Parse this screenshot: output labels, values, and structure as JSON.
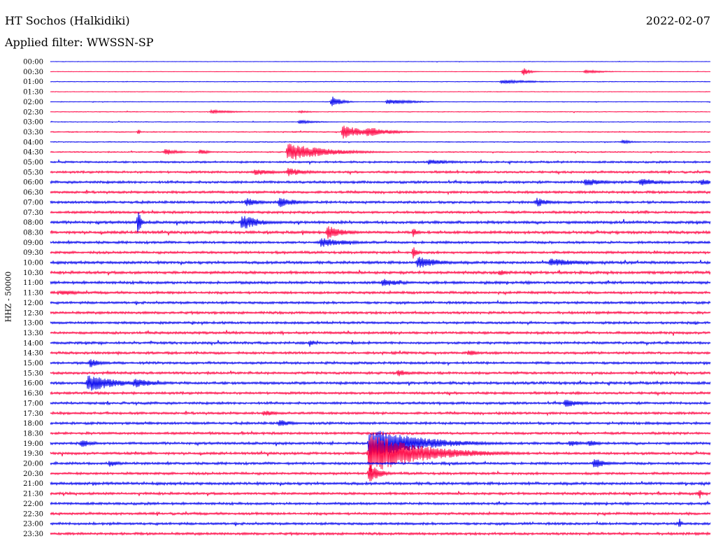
{
  "header": {
    "station": "HT Sochos (Halkidiki)",
    "date": "2022-02-07",
    "filter": "Applied filter: WWSSN-SP"
  },
  "colors": {
    "trace_a": "#0000ee",
    "trace_b": "#ff0040"
  },
  "chart_data": {
    "type": "line",
    "title": "HT Sochos (Halkidiki)",
    "ylabel": "HHZ - 50000",
    "row_interval_minutes": 30,
    "rows": [
      "00:00",
      "00:30",
      "01:00",
      "01:30",
      "02:00",
      "02:30",
      "03:00",
      "03:30",
      "04:00",
      "04:30",
      "05:00",
      "05:30",
      "06:00",
      "06:30",
      "07:00",
      "07:30",
      "08:00",
      "08:30",
      "09:00",
      "09:30",
      "10:00",
      "10:30",
      "11:00",
      "11:30",
      "12:00",
      "12:30",
      "13:00",
      "13:30",
      "14:00",
      "14:30",
      "15:00",
      "15:30",
      "16:00",
      "16:30",
      "17:00",
      "17:30",
      "18:00",
      "18:30",
      "19:00",
      "19:30",
      "20:00",
      "20:30",
      "21:00",
      "21:30",
      "22:00",
      "22:30",
      "23:00",
      "23:30"
    ],
    "row_colors": [
      "blue",
      "red"
    ],
    "noise_level": [
      0.4,
      0.4,
      0.6,
      0.5,
      0.6,
      0.6,
      0.6,
      0.9,
      0.8,
      1.0,
      1.6,
      1.8,
      2.0,
      2.0,
      2.0,
      2.0,
      2.2,
      2.2,
      2.0,
      2.0,
      2.2,
      2.2,
      2.2,
      2.0,
      2.0,
      2.0,
      2.0,
      2.0,
      2.0,
      2.0,
      2.0,
      2.0,
      2.2,
      2.0,
      2.0,
      2.0,
      2.0,
      2.0,
      2.0,
      2.0,
      2.0,
      2.0,
      2.2,
      2.0,
      2.0,
      2.0,
      2.0,
      2.0
    ],
    "events": [
      {
        "row": 1,
        "minute": 21.5,
        "amp": 6,
        "dur": 0.3
      },
      {
        "row": 1,
        "minute": 24.3,
        "amp": 3,
        "dur": 0.8
      },
      {
        "row": 2,
        "minute": 20.5,
        "amp": 3,
        "dur": 1.5
      },
      {
        "row": 4,
        "minute": 12.8,
        "amp": 9,
        "dur": 0.4
      },
      {
        "row": 4,
        "minute": 15.3,
        "amp": 4,
        "dur": 1.2
      },
      {
        "row": 5,
        "minute": 7.3,
        "amp": 3,
        "dur": 1.0
      },
      {
        "row": 5,
        "minute": 11.3,
        "amp": 2,
        "dur": 0.6
      },
      {
        "row": 6,
        "minute": 11.3,
        "amp": 3,
        "dur": 0.8
      },
      {
        "row": 7,
        "minute": 13.3,
        "amp": 10,
        "dur": 1.0
      },
      {
        "row": 7,
        "minute": 14.4,
        "amp": 8,
        "dur": 1.0
      },
      {
        "row": 7,
        "minute": 4.0,
        "amp": 4,
        "dur": 0.1
      },
      {
        "row": 8,
        "minute": 26.0,
        "amp": 3,
        "dur": 0.5
      },
      {
        "row": 9,
        "minute": 5.2,
        "amp": 5,
        "dur": 0.6
      },
      {
        "row": 9,
        "minute": 6.8,
        "amp": 4,
        "dur": 0.4
      },
      {
        "row": 9,
        "minute": 10.8,
        "amp": 14,
        "dur": 1.6
      },
      {
        "row": 10,
        "minute": 17.2,
        "amp": 4,
        "dur": 1.2
      },
      {
        "row": 11,
        "minute": 9.3,
        "amp": 5,
        "dur": 1.0
      },
      {
        "row": 11,
        "minute": 10.8,
        "amp": 6,
        "dur": 1.0
      },
      {
        "row": 12,
        "minute": 24.3,
        "amp": 6,
        "dur": 1.0
      },
      {
        "row": 12,
        "minute": 26.8,
        "amp": 6,
        "dur": 1.0
      },
      {
        "row": 12,
        "minute": 29.6,
        "amp": 5,
        "dur": 0.6
      },
      {
        "row": 14,
        "minute": 8.9,
        "amp": 7,
        "dur": 0.6
      },
      {
        "row": 14,
        "minute": 10.4,
        "amp": 8,
        "dur": 0.8
      },
      {
        "row": 14,
        "minute": 22.1,
        "amp": 7,
        "dur": 0.6
      },
      {
        "row": 16,
        "minute": 8.7,
        "amp": 12,
        "dur": 0.8
      },
      {
        "row": 16,
        "minute": 4.0,
        "amp": 25,
        "dur": 0.1
      },
      {
        "row": 17,
        "minute": 12.6,
        "amp": 10,
        "dur": 0.8
      },
      {
        "row": 17,
        "minute": 16.5,
        "amp": 8,
        "dur": 0.2
      },
      {
        "row": 18,
        "minute": 12.3,
        "amp": 7,
        "dur": 1.2
      },
      {
        "row": 19,
        "minute": 16.5,
        "amp": 10,
        "dur": 0.2
      },
      {
        "row": 20,
        "minute": 16.7,
        "amp": 9,
        "dur": 1.0
      },
      {
        "row": 20,
        "minute": 22.7,
        "amp": 6,
        "dur": 1.6
      },
      {
        "row": 21,
        "minute": 20.4,
        "amp": 5,
        "dur": 0.4
      },
      {
        "row": 22,
        "minute": 15.1,
        "amp": 6,
        "dur": 1.0
      },
      {
        "row": 23,
        "minute": 0.5,
        "amp": 5,
        "dur": 0.8
      },
      {
        "row": 28,
        "minute": 11.8,
        "amp": 7,
        "dur": 0.2
      },
      {
        "row": 29,
        "minute": 19.0,
        "amp": 5,
        "dur": 0.5
      },
      {
        "row": 30,
        "minute": 1.8,
        "amp": 7,
        "dur": 0.5
      },
      {
        "row": 31,
        "minute": 15.8,
        "amp": 6,
        "dur": 0.5
      },
      {
        "row": 32,
        "minute": 1.7,
        "amp": 14,
        "dur": 1.2
      },
      {
        "row": 32,
        "minute": 3.8,
        "amp": 7,
        "dur": 1.0
      },
      {
        "row": 34,
        "minute": 23.4,
        "amp": 6,
        "dur": 0.8
      },
      {
        "row": 35,
        "minute": 9.7,
        "amp": 5,
        "dur": 0.6
      },
      {
        "row": 36,
        "minute": 10.4,
        "amp": 6,
        "dur": 0.6
      },
      {
        "row": 38,
        "minute": 1.4,
        "amp": 6,
        "dur": 0.6
      },
      {
        "row": 38,
        "minute": 14.5,
        "amp": 24,
        "dur": 2.2
      },
      {
        "row": 38,
        "minute": 23.6,
        "amp": 5,
        "dur": 0.6
      },
      {
        "row": 38,
        "minute": 24.5,
        "amp": 5,
        "dur": 0.5
      },
      {
        "row": 39,
        "minute": 14.5,
        "amp": 30,
        "dur": 2.4
      },
      {
        "row": 40,
        "minute": 24.7,
        "amp": 8,
        "dur": 0.6
      },
      {
        "row": 40,
        "minute": 2.7,
        "amp": 5,
        "dur": 0.5
      },
      {
        "row": 41,
        "minute": 14.5,
        "amp": 14,
        "dur": 0.5
      },
      {
        "row": 43,
        "minute": 29.5,
        "amp": 9,
        "dur": 0.1
      },
      {
        "row": 46,
        "minute": 28.6,
        "amp": 8,
        "dur": 0.1
      }
    ]
  }
}
